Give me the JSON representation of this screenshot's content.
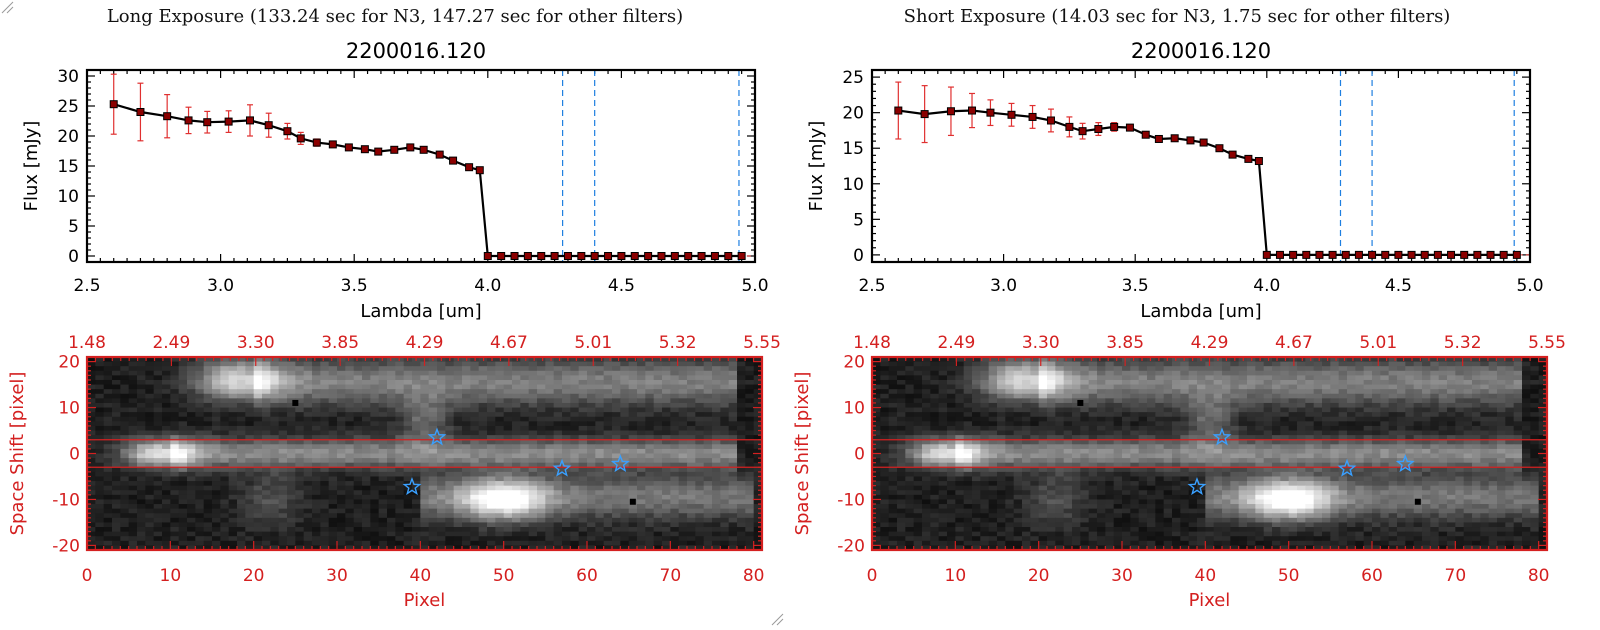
{
  "panels": [
    {
      "title": "Long Exposure (133.24 sec for N3, 147.27 sec for other filters)",
      "spectrum": {
        "title": "2200016.120",
        "ylabel": "Flux [mJy]",
        "xlabel": "Lambda [um]"
      },
      "image": {
        "ylabel": "Space Shift [pixel]",
        "xlabel": "Pixel"
      }
    },
    {
      "title": "Short Exposure (14.03 sec for N3, 1.75 sec for other filters)",
      "spectrum": {
        "title": "2200016.120",
        "ylabel": "Flux [mJy]",
        "xlabel": "Lambda [um]"
      },
      "image": {
        "ylabel": "Space Shift [pixel]",
        "xlabel": "Pixel"
      }
    }
  ],
  "colors": {
    "line": "#000000",
    "marker": "#8b0000",
    "errorbar": "#e03030",
    "filter_line": "#1e7fe0",
    "image_axis": "#d42020",
    "star": "#3aa0ff"
  },
  "chart_data": [
    {
      "type": "line",
      "title": "2200016.120",
      "xlabel": "Lambda [um]",
      "ylabel": "Flux [mJy]",
      "xlim": [
        2.5,
        5.0
      ],
      "ylim": [
        -1,
        31
      ],
      "xticks": [
        "2.5",
        "3.0",
        "3.5",
        "4.0",
        "4.5",
        "5.0"
      ],
      "yticks": [
        "0",
        "5",
        "10",
        "15",
        "20",
        "25",
        "30"
      ],
      "x": [
        2.6,
        2.7,
        2.8,
        2.88,
        2.95,
        3.03,
        3.11,
        3.18,
        3.25,
        3.3,
        3.36,
        3.42,
        3.48,
        3.54,
        3.59,
        3.65,
        3.71,
        3.76,
        3.82,
        3.87,
        3.93,
        3.97,
        4.0,
        4.05,
        4.1,
        4.15,
        4.2,
        4.25,
        4.3,
        4.35,
        4.4,
        4.45,
        4.5,
        4.55,
        4.6,
        4.65,
        4.7,
        4.75,
        4.8,
        4.85,
        4.9,
        4.95
      ],
      "y": [
        25.3,
        24.0,
        23.3,
        22.6,
        22.3,
        22.4,
        22.6,
        21.8,
        20.8,
        19.6,
        18.9,
        18.6,
        18.1,
        17.8,
        17.4,
        17.7,
        18.1,
        17.7,
        16.9,
        15.9,
        14.8,
        14.3,
        0,
        0,
        0,
        0,
        0,
        0,
        0,
        0,
        0,
        0,
        0,
        0,
        0,
        0,
        0,
        0,
        0,
        0,
        0,
        0
      ],
      "yerr": [
        5.0,
        4.8,
        3.6,
        2.2,
        1.8,
        1.8,
        2.6,
        2.0,
        1.3,
        1.0,
        0.6,
        0.4,
        0.3,
        0.3,
        0.3,
        0.3,
        0.3,
        0.3,
        0.3,
        0.3,
        0.3,
        0.3,
        0,
        0,
        0,
        0,
        0,
        0,
        0,
        0,
        0,
        0,
        0,
        0,
        0,
        0,
        0,
        0,
        0,
        0,
        0,
        0
      ],
      "vlines": [
        4.28,
        4.4,
        4.94
      ]
    },
    {
      "type": "line",
      "title": "2200016.120",
      "xlabel": "Lambda [um]",
      "ylabel": "Flux [mJy]",
      "xlim": [
        2.5,
        5.0
      ],
      "ylim": [
        -1,
        26
      ],
      "xticks": [
        "2.5",
        "3.0",
        "3.5",
        "4.0",
        "4.5",
        "5.0"
      ],
      "yticks": [
        "0",
        "5",
        "10",
        "15",
        "20",
        "25"
      ],
      "x": [
        2.6,
        2.7,
        2.8,
        2.88,
        2.95,
        3.03,
        3.11,
        3.18,
        3.25,
        3.3,
        3.36,
        3.42,
        3.48,
        3.54,
        3.59,
        3.65,
        3.71,
        3.76,
        3.82,
        3.87,
        3.93,
        3.97,
        4.0,
        4.05,
        4.1,
        4.15,
        4.2,
        4.25,
        4.3,
        4.35,
        4.4,
        4.45,
        4.5,
        4.55,
        4.6,
        4.65,
        4.7,
        4.75,
        4.8,
        4.85,
        4.9,
        4.95
      ],
      "y": [
        20.3,
        19.8,
        20.2,
        20.3,
        20.0,
        19.7,
        19.4,
        18.9,
        18.0,
        17.4,
        17.7,
        18.0,
        17.9,
        16.9,
        16.3,
        16.4,
        16.1,
        15.8,
        15.0,
        14.1,
        13.5,
        13.2,
        0,
        0,
        0,
        0,
        0,
        0,
        0,
        0,
        0,
        0,
        0,
        0,
        0,
        0,
        0,
        0,
        0,
        0,
        0,
        0
      ],
      "yerr": [
        4.0,
        4.0,
        3.4,
        2.4,
        1.8,
        1.6,
        1.6,
        1.6,
        1.4,
        1.1,
        0.9,
        0.6,
        0.4,
        0.3,
        0.3,
        0.3,
        0.3,
        0.3,
        0.3,
        0.3,
        0.3,
        0.3,
        0,
        0,
        0,
        0,
        0,
        0,
        0,
        0,
        0,
        0,
        0,
        0,
        0,
        0,
        0,
        0,
        0,
        0,
        0,
        0
      ],
      "vlines": [
        4.28,
        4.4,
        4.94
      ]
    },
    {
      "type": "heatmap",
      "xlabel": "Pixel",
      "ylabel": "Space Shift [pixel]",
      "xlim": [
        0,
        81
      ],
      "ylim": [
        -21,
        21
      ],
      "xticks": [
        "0",
        "10",
        "20",
        "30",
        "40",
        "50",
        "60",
        "70",
        "80"
      ],
      "yticks": [
        "-20",
        "-10",
        "0",
        "10",
        "20"
      ],
      "top_ticks": [
        "1.48",
        "2.49",
        "3.30",
        "3.85",
        "4.29",
        "4.67",
        "5.01",
        "5.32",
        "5.55"
      ],
      "hlines": [
        3,
        -3
      ],
      "stars": [
        [
          42,
          3.5
        ],
        [
          57,
          -3.3
        ],
        [
          64,
          -2.3
        ],
        [
          39,
          -7.3
        ]
      ],
      "black_dots": [
        [
          25,
          11
        ],
        [
          65.5,
          -10.5
        ]
      ]
    },
    {
      "type": "heatmap",
      "xlabel": "Pixel",
      "ylabel": "Space Shift [pixel]",
      "xlim": [
        0,
        81
      ],
      "ylim": [
        -21,
        21
      ],
      "xticks": [
        "0",
        "10",
        "20",
        "30",
        "40",
        "50",
        "60",
        "70",
        "80"
      ],
      "yticks": [
        "-20",
        "-10",
        "0",
        "10",
        "20"
      ],
      "top_ticks": [
        "1.48",
        "2.49",
        "3.30",
        "3.85",
        "4.29",
        "4.67",
        "5.01",
        "5.32",
        "5.55"
      ],
      "hlines": [
        3,
        -3
      ],
      "stars": [
        [
          42,
          3.5
        ],
        [
          57,
          -3.3
        ],
        [
          64,
          -2.3
        ],
        [
          39,
          -7.3
        ]
      ],
      "black_dots": [
        [
          25,
          11
        ],
        [
          65.5,
          -10.5
        ]
      ]
    }
  ]
}
